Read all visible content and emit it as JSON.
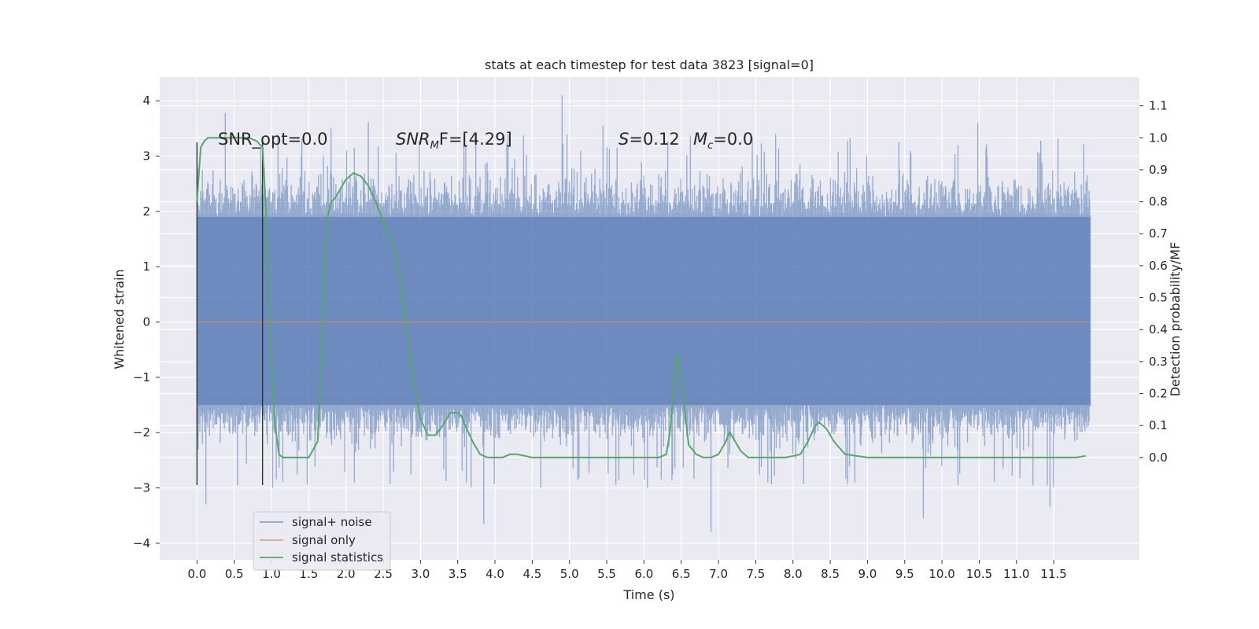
{
  "chart_data": {
    "type": "line",
    "title": "stats at each timestep for test data 3823 [signal=0]",
    "xlabel": "Time (s)",
    "ylabel": "Whitened strain",
    "ylabel_right": "Detection probability/MF",
    "xlim": [
      -0.5,
      12.65
    ],
    "ylim": [
      -4.3,
      4.43
    ],
    "ylim_right": [
      -0.32,
      1.19
    ],
    "x_ticks": [
      "0.0",
      "0.5",
      "1.0",
      "1.5",
      "2.0",
      "2.5",
      "3.0",
      "3.5",
      "4.0",
      "4.5",
      "5.0",
      "5.5",
      "6.0",
      "6.5",
      "7.0",
      "7.5",
      "8.0",
      "8.5",
      "9.0",
      "9.5",
      "10.0",
      "10.5",
      "11.0",
      "11.5"
    ],
    "y_ticks": [
      "−4",
      "−3",
      "−2",
      "−1",
      "0",
      "1",
      "2",
      "3",
      "4"
    ],
    "y_ticks_right": [
      "0.0",
      "0.1",
      "0.2",
      "0.3",
      "0.4",
      "0.5",
      "0.6",
      "0.7",
      "0.8",
      "0.9",
      "1.0",
      "1.1"
    ],
    "grid": true,
    "legend_position": "lower-left",
    "colors": {
      "background": "#eaeaf2",
      "grid": "#ffffff",
      "noise": "#4c72b0",
      "signal": "#dd8452",
      "stats": "#55a868",
      "markers": "#333333"
    },
    "annotations": {
      "snr_opt": "SNR_opt=0.0",
      "snr_mf_base": "SNR",
      "snr_mf_sub": "M",
      "snr_mf_rest": "F=[4.29]",
      "s_label": "S",
      "s_value": "=0.12",
      "mc_label": "M",
      "mc_sub": "c",
      "mc_value": "=0.0"
    },
    "markers_x": [
      0.0,
      0.88
    ],
    "series": [
      {
        "name": "signal+ noise",
        "kind": "noise",
        "x_range": [
          0.0,
          11.99
        ],
        "band": [
          -1.5,
          1.9
        ],
        "typical_extent": [
          -2.6,
          3.0
        ],
        "notable_peaks": [
          [
            0.38,
            3.78
          ],
          [
            1.8,
            3.5
          ],
          [
            2.3,
            3.62
          ],
          [
            4.9,
            4.1
          ],
          [
            5.45,
            3.55
          ],
          [
            10.48,
            3.6
          ],
          [
            6.9,
            -3.8
          ],
          [
            3.85,
            -3.65
          ],
          [
            0.12,
            -3.3
          ],
          [
            9.75,
            -3.55
          ],
          [
            11.45,
            -3.35
          ]
        ]
      },
      {
        "name": "signal only",
        "kind": "flat",
        "x": [
          0.0,
          11.99
        ],
        "y": [
          0.0,
          0.0
        ]
      },
      {
        "name": "signal statistics",
        "kind": "line",
        "axis": "right",
        "x": [
          0.0,
          0.05,
          0.1,
          0.15,
          0.2,
          0.3,
          0.5,
          0.7,
          0.8,
          0.88,
          0.92,
          0.95,
          1.0,
          1.05,
          1.1,
          1.15,
          1.2,
          1.3,
          1.5,
          1.62,
          1.68,
          1.72,
          1.76,
          1.8,
          1.85,
          1.9,
          1.95,
          2.0,
          2.1,
          2.2,
          2.3,
          2.4,
          2.5,
          2.6,
          2.7,
          2.8,
          2.9,
          3.0,
          3.1,
          3.2,
          3.3,
          3.4,
          3.5,
          3.55,
          3.6,
          3.7,
          3.8,
          3.9,
          4.0,
          4.1,
          4.2,
          4.3,
          4.5,
          5.0,
          5.5,
          6.0,
          6.2,
          6.3,
          6.35,
          6.4,
          6.45,
          6.5,
          6.55,
          6.6,
          6.7,
          6.8,
          6.9,
          7.0,
          7.1,
          7.15,
          7.2,
          7.3,
          7.4,
          7.6,
          7.9,
          8.1,
          8.2,
          8.3,
          8.35,
          8.45,
          8.55,
          8.7,
          9.0,
          9.5,
          10.0,
          10.5,
          11.0,
          11.5,
          11.8,
          11.93
        ],
        "y": [
          0.8,
          0.97,
          0.99,
          1.0,
          1.0,
          1.0,
          1.0,
          1.0,
          0.99,
          0.97,
          0.8,
          0.6,
          0.3,
          0.1,
          0.01,
          0.0,
          0.0,
          0.0,
          0.0,
          0.05,
          0.35,
          0.65,
          0.76,
          0.8,
          0.81,
          0.83,
          0.85,
          0.87,
          0.89,
          0.88,
          0.85,
          0.8,
          0.74,
          0.69,
          0.6,
          0.43,
          0.25,
          0.12,
          0.07,
          0.07,
          0.1,
          0.14,
          0.14,
          0.13,
          0.1,
          0.05,
          0.01,
          0.0,
          0.0,
          0.0,
          0.01,
          0.01,
          0.0,
          0.0,
          0.0,
          0.0,
          0.0,
          0.01,
          0.08,
          0.22,
          0.32,
          0.26,
          0.14,
          0.04,
          0.01,
          0.0,
          0.0,
          0.01,
          0.05,
          0.08,
          0.06,
          0.02,
          0.0,
          0.0,
          0.0,
          0.01,
          0.05,
          0.1,
          0.11,
          0.09,
          0.05,
          0.01,
          0.0,
          0.0,
          0.0,
          0.0,
          0.0,
          0.0,
          0.0,
          0.005
        ]
      }
    ]
  }
}
